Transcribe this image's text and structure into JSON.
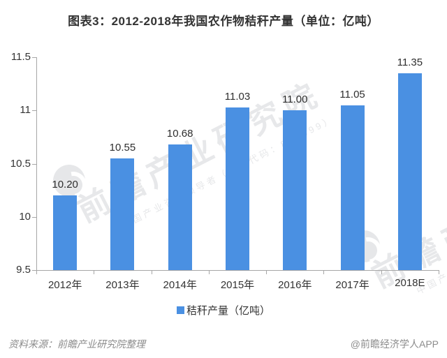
{
  "title": {
    "text": "图表3：2012-2018年我国农作物秸秆产量（单位：亿吨）"
  },
  "chart_data": {
    "type": "bar",
    "title": "图表3：2012-2018年我国农作物秸秆产量（单位：亿吨）",
    "categories": [
      "2012年",
      "2013年",
      "2014年",
      "2015年",
      "2016年",
      "2017年",
      "2018E"
    ],
    "values": [
      10.2,
      10.55,
      10.68,
      11.03,
      11.0,
      11.05,
      11.35
    ],
    "value_labels": [
      "10.20",
      "10.55",
      "10.68",
      "11.03",
      "11.00",
      "11.05",
      "11.35"
    ],
    "series_name": "秸秆产量（亿吨）",
    "xlabel": "",
    "ylabel": "",
    "ylim": [
      9.5,
      11.5
    ],
    "ytick_labels": [
      "11.5",
      "11",
      "10.5",
      "10",
      "9.5"
    ],
    "grid": false,
    "legend_position": "bottom",
    "bar_color": "#4a90e2",
    "axis_color": "#a6a6a6",
    "label_color": "#333333"
  },
  "legend": {
    "label": "秸秆产量（亿吨）",
    "swatch_color": "#4a90e2"
  },
  "watermark": {
    "main": "前瞻产业研究院",
    "sub": "中国产业咨询领导者（股票代码：839599）",
    "logo": "qianzhan-logo"
  },
  "footer": {
    "source": "资料来源：前瞻产业研究院整理",
    "credit": "@前瞻经济学人APP"
  }
}
